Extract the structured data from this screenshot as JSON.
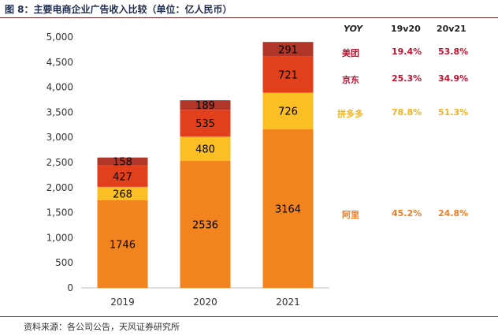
{
  "title": "图 8：主要电商企业广告收入比较（单位：亿人民币）",
  "source": "资料来源：各公司公告，天风证券研究所",
  "chart_data": {
    "type": "bar",
    "stacked": true,
    "categories": [
      "2019",
      "2020",
      "2021"
    ],
    "series": [
      {
        "name": "阿里",
        "color": "#f2841f",
        "label_color": "#000000",
        "values": [
          1746,
          2536,
          3164
        ]
      },
      {
        "name": "拼多多",
        "color": "#fbbf26",
        "label_color": "#000000",
        "values": [
          268,
          480,
          726
        ]
      },
      {
        "name": "京东",
        "color": "#e2401d",
        "label_color": "#000000",
        "values": [
          427,
          535,
          721
        ]
      },
      {
        "name": "美团",
        "color": "#b0362a",
        "label_color": "#000000",
        "values": [
          158,
          189,
          291
        ]
      }
    ],
    "ylim": [
      0,
      5000
    ],
    "yticks": [
      0,
      500,
      1000,
      1500,
      2000,
      2500,
      3000,
      3500,
      4000,
      4500,
      5000
    ],
    "ytick_labels": [
      "0",
      "500",
      "1,000",
      "1,500",
      "2,000",
      "2,500",
      "3,000",
      "3,500",
      "4,000",
      "4,500",
      "5,000"
    ],
    "xlabel": "",
    "ylabel": "",
    "grid": false
  },
  "yoy_table": {
    "header": {
      "label": "YOY",
      "col1": "19v20",
      "col2": "20v21"
    },
    "rows": [
      {
        "company": "美团",
        "color": "#c8102e",
        "v1": "19.4%",
        "v2": "53.8%"
      },
      {
        "company": "京东",
        "color": "#c8102e",
        "v1": "25.3%",
        "v2": "34.9%"
      },
      {
        "company": "拼多多",
        "color": "#f0b323",
        "v1": "78.8%",
        "v2": "51.3%"
      },
      {
        "company": "阿里",
        "color": "#f07d23",
        "v1": "45.2%",
        "v2": "24.8%"
      }
    ]
  }
}
